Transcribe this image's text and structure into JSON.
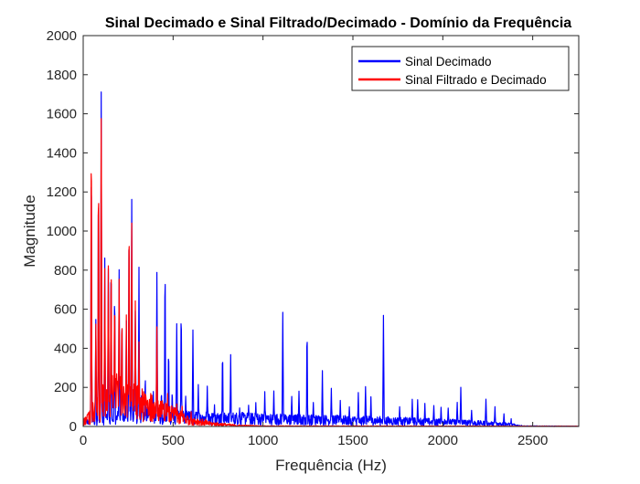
{
  "chart_data": {
    "type": "line",
    "title": "Sinal Decimado e Sinal Filtrado/Decimado - Domínio da Frequência",
    "xlabel": "Frequência (Hz)",
    "ylabel": "Magnitude",
    "xlim": [
      0,
      2756
    ],
    "ylim": [
      0,
      2000
    ],
    "xticks": [
      0,
      500,
      1000,
      1500,
      2000,
      2500
    ],
    "xtick_labels": [
      "0",
      "500",
      "1000",
      "1500",
      "2000",
      "2500"
    ],
    "yticks": [
      0,
      200,
      400,
      600,
      800,
      1000,
      1200,
      1400,
      1600,
      1800,
      2000
    ],
    "ytick_labels": [
      "0",
      "200",
      "400",
      "600",
      "800",
      "1000",
      "1200",
      "1400",
      "1600",
      "1800",
      "2000"
    ],
    "grid": false,
    "legend_position": "top-right",
    "series": [
      {
        "name": "Sinal Decimado",
        "color": "#0000ff",
        "peaks": [
          [
            45,
            1580
          ],
          [
            70,
            600
          ],
          [
            85,
            1390
          ],
          [
            100,
            1800
          ],
          [
            120,
            880
          ],
          [
            140,
            930
          ],
          [
            155,
            900
          ],
          [
            175,
            760
          ],
          [
            200,
            810
          ],
          [
            215,
            610
          ],
          [
            240,
            620
          ],
          [
            255,
            1130
          ],
          [
            270,
            1250
          ],
          [
            290,
            680
          ],
          [
            310,
            850
          ],
          [
            325,
            190
          ],
          [
            345,
            280
          ],
          [
            370,
            140
          ],
          [
            390,
            200
          ],
          [
            410,
            830
          ],
          [
            435,
            200
          ],
          [
            455,
            870
          ],
          [
            475,
            420
          ],
          [
            495,
            200
          ],
          [
            520,
            570
          ],
          [
            545,
            630
          ],
          [
            570,
            180
          ],
          [
            610,
            520
          ],
          [
            640,
            230
          ],
          [
            690,
            240
          ],
          [
            730,
            130
          ],
          [
            775,
            390
          ],
          [
            820,
            370
          ],
          [
            870,
            110
          ],
          [
            920,
            120
          ],
          [
            960,
            130
          ],
          [
            1010,
            180
          ],
          [
            1060,
            190
          ],
          [
            1110,
            660
          ],
          [
            1160,
            170
          ],
          [
            1200,
            200
          ],
          [
            1245,
            550
          ],
          [
            1280,
            140
          ],
          [
            1330,
            290
          ],
          [
            1380,
            200
          ],
          [
            1430,
            140
          ],
          [
            1480,
            110
          ],
          [
            1530,
            180
          ],
          [
            1570,
            230
          ],
          [
            1600,
            160
          ],
          [
            1670,
            630
          ],
          [
            1760,
            110
          ],
          [
            1830,
            140
          ],
          [
            1860,
            160
          ],
          [
            1900,
            130
          ],
          [
            1950,
            120
          ],
          [
            1990,
            100
          ],
          [
            2030,
            110
          ],
          [
            2080,
            140
          ],
          [
            2100,
            210
          ],
          [
            2160,
            90
          ],
          [
            2240,
            150
          ],
          [
            2290,
            110
          ],
          [
            2340,
            70
          ],
          [
            2380,
            40
          ]
        ],
        "noise_floor": [
          [
            0,
            20
          ],
          [
            300,
            60
          ],
          [
            600,
            45
          ],
          [
            1200,
            35
          ],
          [
            1700,
            28
          ],
          [
            2100,
            20
          ],
          [
            2350,
            12
          ],
          [
            2450,
            2
          ],
          [
            2756,
            1
          ]
        ]
      },
      {
        "name": "Sinal Filtrado e Decimado",
        "color": "#ff0000",
        "peaks": [
          [
            45,
            1580
          ],
          [
            70,
            580
          ],
          [
            85,
            1390
          ],
          [
            100,
            1810
          ],
          [
            120,
            870
          ],
          [
            140,
            920
          ],
          [
            155,
            890
          ],
          [
            175,
            750
          ],
          [
            200,
            800
          ],
          [
            215,
            600
          ],
          [
            240,
            600
          ],
          [
            255,
            1120
          ],
          [
            270,
            1150
          ],
          [
            290,
            660
          ],
          [
            310,
            450
          ],
          [
            330,
            150
          ],
          [
            360,
            120
          ],
          [
            410,
            580
          ],
          [
            440,
            140
          ],
          [
            470,
            170
          ],
          [
            520,
            130
          ],
          [
            550,
            110
          ],
          [
            600,
            80
          ],
          [
            680,
            40
          ],
          [
            760,
            15
          ]
        ],
        "noise_floor": [
          [
            0,
            20
          ],
          [
            150,
            160
          ],
          [
            300,
            120
          ],
          [
            420,
            80
          ],
          [
            560,
            40
          ],
          [
            700,
            15
          ],
          [
            850,
            5
          ],
          [
            1000,
            2
          ],
          [
            2756,
            1
          ]
        ]
      }
    ]
  }
}
